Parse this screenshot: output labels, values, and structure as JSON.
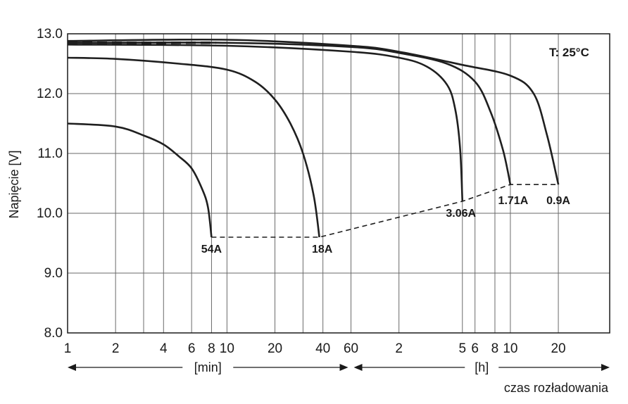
{
  "chart_data": {
    "type": "line",
    "ylabel": "Napięcie [V]",
    "xlabel": "czas rozładowania",
    "annotation": "T: 25°C",
    "ylim": [
      8.0,
      13.0
    ],
    "y_ticks": [
      "8.0",
      "9.0",
      "10.0",
      "11.0",
      "12.0",
      "13.0"
    ],
    "x_scale": "log",
    "x_ticks": [
      {
        "label": "1",
        "minutes": 1
      },
      {
        "label": "2",
        "minutes": 2
      },
      {
        "label": "4",
        "minutes": 4
      },
      {
        "label": "6",
        "minutes": 6
      },
      {
        "label": "8",
        "minutes": 8
      },
      {
        "label": "10",
        "minutes": 10
      },
      {
        "label": "20",
        "minutes": 20
      },
      {
        "label": "40",
        "minutes": 40
      },
      {
        "label": "60",
        "minutes": 60
      },
      {
        "label": "2",
        "minutes": 120
      },
      {
        "label": "5",
        "minutes": 300
      },
      {
        "label": "6",
        "minutes": 360
      },
      {
        "label": "8",
        "minutes": 480
      },
      {
        "label": "10",
        "minutes": 600
      },
      {
        "label": "20",
        "minutes": 1200
      }
    ],
    "extra_gridlines_minutes": [
      3,
      30
    ],
    "xlim_minutes": [
      1,
      2520
    ],
    "x_units": [
      {
        "label": "[min]",
        "from_minutes": 1,
        "to_minutes": 60
      },
      {
        "label": "[h]",
        "from_minutes": 60,
        "to_minutes": 2520
      }
    ],
    "initial_voltage_dashed": 12.85,
    "series": [
      {
        "name": "54A",
        "points": [
          [
            1,
            11.5
          ],
          [
            2,
            11.45
          ],
          [
            3,
            11.3
          ],
          [
            4,
            11.15
          ],
          [
            5,
            10.95
          ],
          [
            6,
            10.75
          ],
          [
            7,
            10.4
          ],
          [
            7.6,
            10.1
          ],
          [
            8,
            9.6
          ]
        ]
      },
      {
        "name": "18A",
        "points": [
          [
            1,
            12.6
          ],
          [
            2,
            12.58
          ],
          [
            5,
            12.5
          ],
          [
            10,
            12.4
          ],
          [
            15,
            12.2
          ],
          [
            20,
            11.9
          ],
          [
            25,
            11.5
          ],
          [
            30,
            11.0
          ],
          [
            35,
            10.3
          ],
          [
            38,
            9.6
          ]
        ]
      },
      {
        "name": "3.06A",
        "points": [
          [
            1,
            12.82
          ],
          [
            10,
            12.8
          ],
          [
            60,
            12.7
          ],
          [
            120,
            12.6
          ],
          [
            180,
            12.45
          ],
          [
            240,
            12.15
          ],
          [
            270,
            11.75
          ],
          [
            290,
            11.1
          ],
          [
            300,
            10.2
          ]
        ]
      },
      {
        "name": "1.71A",
        "points": [
          [
            1,
            12.85
          ],
          [
            10,
            12.85
          ],
          [
            60,
            12.78
          ],
          [
            120,
            12.68
          ],
          [
            240,
            12.5
          ],
          [
            360,
            12.2
          ],
          [
            450,
            11.7
          ],
          [
            540,
            11.05
          ],
          [
            600,
            10.48
          ]
        ]
      },
      {
        "name": "0.9A",
        "points": [
          [
            1,
            12.88
          ],
          [
            10,
            12.9
          ],
          [
            60,
            12.8
          ],
          [
            120,
            12.7
          ],
          [
            300,
            12.48
          ],
          [
            600,
            12.3
          ],
          [
            840,
            12.0
          ],
          [
            1020,
            11.3
          ],
          [
            1200,
            10.48
          ]
        ]
      }
    ],
    "endpoint_line": [
      [
        8,
        9.6
      ],
      [
        38,
        9.6
      ],
      [
        300,
        10.2
      ],
      [
        600,
        10.48
      ],
      [
        1200,
        10.48
      ]
    ]
  }
}
